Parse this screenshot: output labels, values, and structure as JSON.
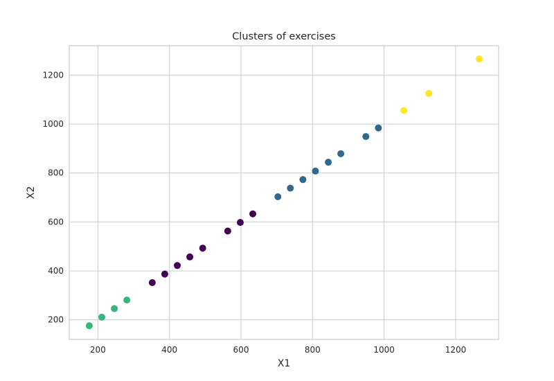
{
  "chart_data": {
    "type": "scatter",
    "title": "Clusters of exercises",
    "xlabel": "X1",
    "ylabel": "X2",
    "xlim": [
      120,
      1320
    ],
    "ylim": [
      120,
      1320
    ],
    "xticks": [
      200,
      400,
      600,
      800,
      1000,
      1200
    ],
    "yticks": [
      200,
      400,
      600,
      800,
      1000,
      1200
    ],
    "grid": true,
    "colors": {
      "cluster_0": "#440154",
      "cluster_1": "#31688e",
      "cluster_2": "#35b779",
      "cluster_3": "#fde725"
    },
    "points": [
      {
        "x": 176,
        "y": 176,
        "cluster": 2
      },
      {
        "x": 211,
        "y": 211,
        "cluster": 2
      },
      {
        "x": 246,
        "y": 246,
        "cluster": 2
      },
      {
        "x": 281,
        "y": 281,
        "cluster": 2
      },
      {
        "x": 352,
        "y": 352,
        "cluster": 0
      },
      {
        "x": 387,
        "y": 387,
        "cluster": 0
      },
      {
        "x": 422,
        "y": 422,
        "cluster": 0
      },
      {
        "x": 457,
        "y": 457,
        "cluster": 0
      },
      {
        "x": 493,
        "y": 493,
        "cluster": 0
      },
      {
        "x": 563,
        "y": 563,
        "cluster": 0
      },
      {
        "x": 598,
        "y": 598,
        "cluster": 0
      },
      {
        "x": 633,
        "y": 633,
        "cluster": 0
      },
      {
        "x": 703,
        "y": 703,
        "cluster": 1
      },
      {
        "x": 738,
        "y": 738,
        "cluster": 1
      },
      {
        "x": 773,
        "y": 773,
        "cluster": 1
      },
      {
        "x": 808,
        "y": 808,
        "cluster": 1
      },
      {
        "x": 844,
        "y": 844,
        "cluster": 1
      },
      {
        "x": 879,
        "y": 879,
        "cluster": 1
      },
      {
        "x": 949,
        "y": 949,
        "cluster": 1
      },
      {
        "x": 984,
        "y": 984,
        "cluster": 1
      },
      {
        "x": 1055,
        "y": 1055,
        "cluster": 3
      },
      {
        "x": 1125,
        "y": 1125,
        "cluster": 3
      },
      {
        "x": 1266,
        "y": 1266,
        "cluster": 3
      }
    ]
  }
}
